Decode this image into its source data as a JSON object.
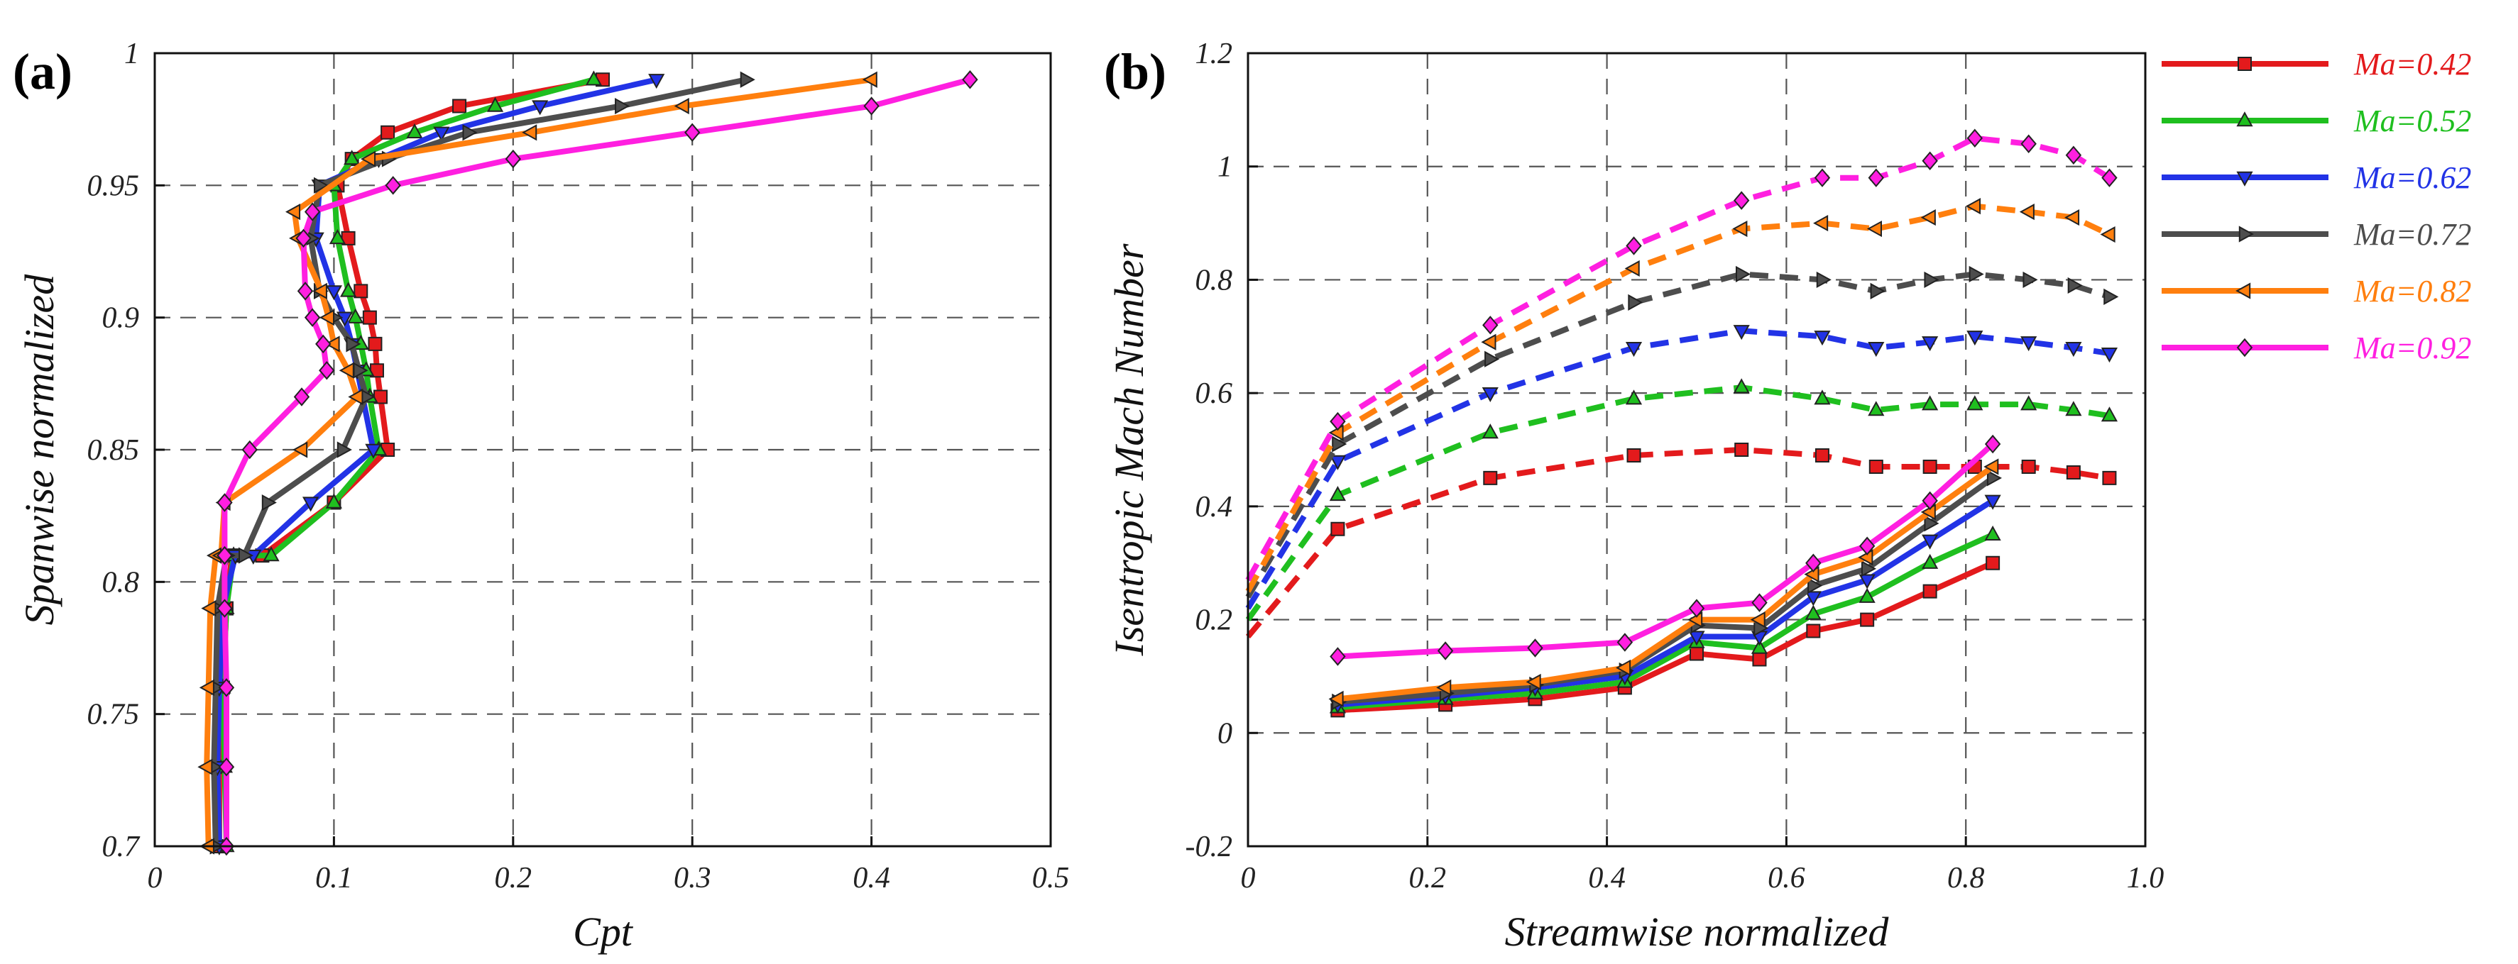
{
  "legend": [
    {
      "label": "Ma=0.42",
      "color": "#e31a1c",
      "marker": "square"
    },
    {
      "label": "Ma=0.52",
      "color": "#1fbf1f",
      "marker": "triangle-up"
    },
    {
      "label": "Ma=0.62",
      "color": "#2233e6",
      "marker": "triangle-down"
    },
    {
      "label": "Ma=0.72",
      "color": "#4d4d4d",
      "marker": "triangle-right"
    },
    {
      "label": "Ma=0.82",
      "color": "#ff7f0e",
      "marker": "triangle-left"
    },
    {
      "label": "Ma=0.92",
      "color": "#ff1fe0",
      "marker": "diamond"
    }
  ],
  "chart_data": [
    {
      "panel_label": "(a)",
      "type": "line",
      "xlabel": "Cpt",
      "ylabel": "Spanwise normalized",
      "xlim": [
        0,
        0.5
      ],
      "ylim": [
        0.7,
        1.0
      ],
      "xticks": [
        "0",
        "0.1",
        "0.2",
        "0.3",
        "0.4",
        "0.5"
      ],
      "yticks": [
        "0.7",
        "0.75",
        "0.8",
        "0.85",
        "0.9",
        "0.95",
        "1"
      ],
      "grid": true,
      "series": [
        {
          "name": "Ma=0.42",
          "x": [
            0.036,
            0.036,
            0.038,
            0.04,
            0.043,
            0.06,
            0.1,
            0.13,
            0.126,
            0.124,
            0.123,
            0.12,
            0.115,
            0.108,
            0.102,
            0.11,
            0.13,
            0.17,
            0.25
          ],
          "y": [
            0.7,
            0.73,
            0.76,
            0.79,
            0.81,
            0.81,
            0.83,
            0.85,
            0.87,
            0.88,
            0.89,
            0.9,
            0.91,
            0.93,
            0.95,
            0.96,
            0.97,
            0.98,
            0.99
          ]
        },
        {
          "name": "Ma=0.52",
          "x": [
            0.04,
            0.039,
            0.038,
            0.04,
            0.044,
            0.065,
            0.1,
            0.125,
            0.12,
            0.118,
            0.115,
            0.112,
            0.108,
            0.102,
            0.1,
            0.11,
            0.145,
            0.19,
            0.245
          ],
          "y": [
            0.7,
            0.73,
            0.76,
            0.79,
            0.81,
            0.81,
            0.83,
            0.85,
            0.87,
            0.88,
            0.89,
            0.9,
            0.91,
            0.93,
            0.95,
            0.96,
            0.97,
            0.98,
            0.99
          ]
        },
        {
          "name": "Ma=0.62",
          "x": [
            0.036,
            0.035,
            0.036,
            0.038,
            0.045,
            0.055,
            0.087,
            0.122,
            0.116,
            0.113,
            0.11,
            0.106,
            0.1,
            0.09,
            0.092,
            0.125,
            0.16,
            0.215,
            0.28
          ],
          "y": [
            0.7,
            0.73,
            0.76,
            0.79,
            0.81,
            0.81,
            0.83,
            0.85,
            0.87,
            0.88,
            0.89,
            0.9,
            0.91,
            0.93,
            0.95,
            0.96,
            0.97,
            0.98,
            0.99
          ]
        },
        {
          "name": "Ma=0.72",
          "x": [
            0.034,
            0.033,
            0.034,
            0.035,
            0.04,
            0.05,
            0.063,
            0.105,
            0.118,
            0.114,
            0.11,
            0.1,
            0.092,
            0.087,
            0.092,
            0.13,
            0.175,
            0.26,
            0.33
          ],
          "y": [
            0.7,
            0.73,
            0.76,
            0.79,
            0.81,
            0.81,
            0.83,
            0.85,
            0.87,
            0.88,
            0.89,
            0.9,
            0.91,
            0.93,
            0.95,
            0.96,
            0.97,
            0.98,
            0.99
          ]
        },
        {
          "name": "Ma=0.82",
          "x": [
            0.03,
            0.029,
            0.03,
            0.031,
            0.034,
            0.037,
            0.039,
            0.082,
            0.113,
            0.108,
            0.1,
            0.097,
            0.093,
            0.08,
            0.078,
            0.12,
            0.21,
            0.295,
            0.4
          ],
          "y": [
            0.7,
            0.73,
            0.76,
            0.79,
            0.81,
            0.81,
            0.83,
            0.85,
            0.87,
            0.88,
            0.89,
            0.9,
            0.91,
            0.93,
            0.94,
            0.96,
            0.97,
            0.98,
            0.99
          ]
        },
        {
          "name": "Ma=0.92",
          "x": [
            0.04,
            0.04,
            0.04,
            0.039,
            0.039,
            0.039,
            0.039,
            0.053,
            0.082,
            0.096,
            0.094,
            0.088,
            0.084,
            0.083,
            0.088,
            0.133,
            0.2,
            0.3,
            0.4,
            0.455
          ],
          "y": [
            0.7,
            0.73,
            0.76,
            0.79,
            0.81,
            0.81,
            0.83,
            0.85,
            0.87,
            0.88,
            0.89,
            0.9,
            0.91,
            0.93,
            0.94,
            0.95,
            0.96,
            0.97,
            0.98,
            0.99
          ]
        }
      ]
    },
    {
      "panel_label": "(b)",
      "type": "line",
      "xlabel": "Streamwise normalized",
      "ylabel": "Isentropic Mach Number",
      "xlim": [
        0,
        1.0
      ],
      "ylim": [
        -0.2,
        1.2
      ],
      "xticks": [
        "0",
        "0.2",
        "0.4",
        "0.6",
        "0.8",
        "1.0"
      ],
      "yticks": [
        "-0.2",
        "0",
        "0.2",
        "0.4",
        "0.6",
        "0.8",
        "1",
        "1.2"
      ],
      "grid": true,
      "series": [
        {
          "name": "Ma=0.42",
          "part": "suction (dashed)",
          "x": [
            0,
            0.1,
            0.27,
            0.43,
            0.55,
            0.64,
            0.7,
            0.76,
            0.81,
            0.87,
            0.92,
            0.96
          ],
          "y": [
            0.17,
            0.36,
            0.45,
            0.49,
            0.5,
            0.49,
            0.47,
            0.47,
            0.47,
            0.47,
            0.46,
            0.45
          ]
        },
        {
          "name": "Ma=0.52",
          "part": "suction (dashed)",
          "x": [
            0,
            0.1,
            0.27,
            0.43,
            0.55,
            0.64,
            0.7,
            0.76,
            0.81,
            0.87,
            0.92,
            0.96
          ],
          "y": [
            0.2,
            0.42,
            0.53,
            0.59,
            0.61,
            0.59,
            0.57,
            0.58,
            0.58,
            0.58,
            0.57,
            0.56
          ]
        },
        {
          "name": "Ma=0.62",
          "part": "suction (dashed)",
          "x": [
            0,
            0.1,
            0.27,
            0.43,
            0.55,
            0.64,
            0.7,
            0.76,
            0.81,
            0.87,
            0.92,
            0.96
          ],
          "y": [
            0.22,
            0.48,
            0.6,
            0.68,
            0.71,
            0.7,
            0.68,
            0.69,
            0.7,
            0.69,
            0.68,
            0.67
          ]
        },
        {
          "name": "Ma=0.72",
          "part": "suction (dashed)",
          "x": [
            0,
            0.1,
            0.27,
            0.43,
            0.55,
            0.64,
            0.7,
            0.76,
            0.81,
            0.87,
            0.92,
            0.96
          ],
          "y": [
            0.24,
            0.51,
            0.66,
            0.76,
            0.81,
            0.8,
            0.78,
            0.8,
            0.81,
            0.8,
            0.79,
            0.77
          ]
        },
        {
          "name": "Ma=0.82",
          "part": "suction (dashed)",
          "x": [
            0,
            0.1,
            0.27,
            0.43,
            0.55,
            0.64,
            0.7,
            0.76,
            0.81,
            0.87,
            0.92,
            0.96
          ],
          "y": [
            0.25,
            0.53,
            0.69,
            0.82,
            0.89,
            0.9,
            0.89,
            0.91,
            0.93,
            0.92,
            0.91,
            0.88
          ]
        },
        {
          "name": "Ma=0.92",
          "part": "suction (dashed)",
          "x": [
            0,
            0.1,
            0.27,
            0.43,
            0.55,
            0.64,
            0.7,
            0.76,
            0.81,
            0.87,
            0.92,
            0.96
          ],
          "y": [
            0.27,
            0.55,
            0.72,
            0.86,
            0.94,
            0.98,
            0.98,
            1.01,
            1.05,
            1.04,
            1.02,
            0.98
          ]
        },
        {
          "name": "Ma=0.42",
          "part": "pressure (solid)",
          "x": [
            0.1,
            0.22,
            0.32,
            0.42,
            0.5,
            0.57,
            0.63,
            0.69,
            0.76,
            0.83
          ],
          "y": [
            0.04,
            0.05,
            0.06,
            0.08,
            0.14,
            0.13,
            0.18,
            0.2,
            0.25,
            0.3
          ]
        },
        {
          "name": "Ma=0.52",
          "part": "pressure (solid)",
          "x": [
            0.1,
            0.22,
            0.32,
            0.42,
            0.5,
            0.57,
            0.63,
            0.69,
            0.76,
            0.83
          ],
          "y": [
            0.045,
            0.06,
            0.07,
            0.09,
            0.16,
            0.15,
            0.21,
            0.24,
            0.3,
            0.35
          ]
        },
        {
          "name": "Ma=0.62",
          "part": "pressure (solid)",
          "x": [
            0.1,
            0.22,
            0.32,
            0.42,
            0.5,
            0.57,
            0.63,
            0.69,
            0.76,
            0.83
          ],
          "y": [
            0.05,
            0.065,
            0.08,
            0.1,
            0.17,
            0.17,
            0.24,
            0.27,
            0.34,
            0.41
          ]
        },
        {
          "name": "Ma=0.72",
          "part": "pressure (solid)",
          "x": [
            0.1,
            0.22,
            0.32,
            0.42,
            0.5,
            0.57,
            0.63,
            0.69,
            0.76,
            0.83
          ],
          "y": [
            0.055,
            0.07,
            0.085,
            0.11,
            0.19,
            0.185,
            0.26,
            0.29,
            0.37,
            0.45
          ]
        },
        {
          "name": "Ma=0.82",
          "part": "pressure (solid)",
          "x": [
            0.1,
            0.22,
            0.32,
            0.42,
            0.5,
            0.57,
            0.63,
            0.69,
            0.76,
            0.83
          ],
          "y": [
            0.06,
            0.08,
            0.09,
            0.115,
            0.2,
            0.2,
            0.28,
            0.31,
            0.39,
            0.47
          ]
        },
        {
          "name": "Ma=0.92",
          "part": "pressure (solid)",
          "x": [
            0.1,
            0.22,
            0.32,
            0.42,
            0.5,
            0.57,
            0.63,
            0.69,
            0.76,
            0.83
          ],
          "y": [
            0.135,
            0.145,
            0.15,
            0.16,
            0.22,
            0.23,
            0.3,
            0.33,
            0.41,
            0.51
          ]
        }
      ]
    }
  ]
}
